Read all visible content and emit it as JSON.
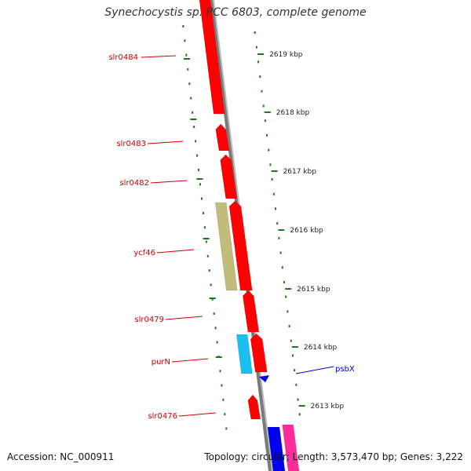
{
  "title": "Synechocystis sp. PCC 6803, complete genome",
  "colors": {
    "background": "#ffffff",
    "backbone": "#7a7a7a",
    "tick": "#1a7a1a",
    "gene_label": "#cc0000",
    "gene_red": "#ff0000",
    "gene_olive": "#c2bb7a",
    "gene_cyan": "#19c0f0",
    "gene_blue": "#0000ee",
    "gene_pink": "#ff2d9a",
    "psbx_label": "#0000cc"
  },
  "scale_labels": [
    "2619 kbp",
    "2618 kbp",
    "2617 kbp",
    "2616 kbp",
    "2615 kbp",
    "2614 kbp",
    "2613 kbp"
  ],
  "gene_labels": [
    {
      "label": "slr0484",
      "color": "#cc0000"
    },
    {
      "label": "slr0483",
      "color": "#cc0000"
    },
    {
      "label": "slr0482",
      "color": "#cc0000"
    },
    {
      "label": "ycf46",
      "color": "#cc0000"
    },
    {
      "label": "slr0479",
      "color": "#cc0000"
    },
    {
      "label": "purN",
      "color": "#cc0000"
    },
    {
      "label": "slr0476",
      "color": "#cc0000"
    },
    {
      "label": "psbX",
      "color": "#0000cc"
    }
  ],
  "footer": {
    "accession": "Accession: NC_000911",
    "summary": "Topology: circular; Length: 3,573,470 bp; Genes: 3,222"
  }
}
